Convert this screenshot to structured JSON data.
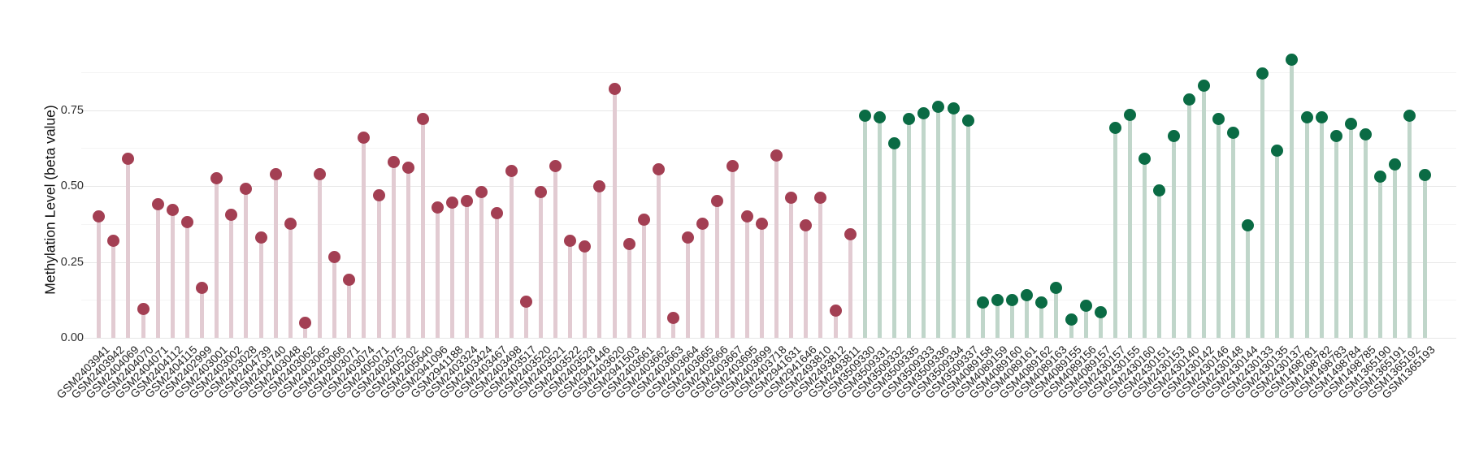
{
  "chart_data": {
    "type": "bar",
    "subtype": "lollipop",
    "title": "",
    "xlabel": "",
    "ylabel": "Methylation Level (beta value)",
    "ylim": [
      0,
      0.95
    ],
    "grid": true,
    "legend": false,
    "yticks": [
      0,
      0.25,
      0.5,
      0.75
    ],
    "ytick_labels": [
      "0.00",
      "0.25",
      "0.50",
      "0.75"
    ],
    "y_minor_gridlines": [
      0.125,
      0.375,
      0.625,
      0.875
    ],
    "groups": [
      {
        "name": "group-maroon",
        "from": 0,
        "to": 51,
        "stem_color": "#e2cbd2",
        "dot_color": "#a33f53"
      },
      {
        "name": "group-green",
        "from": 52,
        "to": 90,
        "stem_color": "#c0d6ca",
        "dot_color": "#0a6b44"
      }
    ],
    "categories": [
      "GSM2403941",
      "GSM2403942",
      "GSM2404069",
      "GSM2404070",
      "GSM2404071",
      "GSM2404112",
      "GSM2404115",
      "GSM2402999",
      "GSM2403001",
      "GSM2403002",
      "GSM2403028",
      "GSM2404739",
      "GSM2404740",
      "GSM2403048",
      "GSM2403062",
      "GSM2403065",
      "GSM2403066",
      "GSM2403071",
      "GSM2403074",
      "GSM2405071",
      "GSM2403075",
      "GSM2405202",
      "GSM2405640",
      "GSM2941096",
      "GSM2941188",
      "GSM2403324",
      "GSM2403424",
      "GSM2403467",
      "GSM2403498",
      "GSM2403517",
      "GSM2403520",
      "GSM2403521",
      "GSM2403522",
      "GSM2403528",
      "GSM2941446",
      "GSM2403620",
      "GSM2941503",
      "GSM2403661",
      "GSM2403662",
      "GSM2403663",
      "GSM2403664",
      "GSM2403665",
      "GSM2403666",
      "GSM2403667",
      "GSM2403695",
      "GSM2403699",
      "GSM2403718",
      "GSM2941631",
      "GSM2941646",
      "GSM2493810",
      "GSM2493812",
      "GSM2493811",
      "GSM3509330",
      "GSM3509331",
      "GSM3509332",
      "GSM3509335",
      "GSM3509333",
      "GSM3509336",
      "GSM3509334",
      "GSM3509337",
      "GSM4089158",
      "GSM4089159",
      "GSM4089160",
      "GSM4089161",
      "GSM4089162",
      "GSM4089163",
      "GSM4089155",
      "GSM4089156",
      "GSM4089157",
      "GSM2430157",
      "GSM2430155",
      "GSM2430160",
      "GSM2430151",
      "GSM2430153",
      "GSM2430140",
      "GSM2430142",
      "GSM2430146",
      "GSM2430148",
      "GSM2430144",
      "GSM2430133",
      "GSM2430135",
      "GSM2430137",
      "GSM1498781",
      "GSM1498782",
      "GSM1498783",
      "GSM1498784",
      "GSM1498785",
      "GSM1365190",
      "GSM1365191",
      "GSM1365192",
      "GSM1365193"
    ],
    "values": [
      0.4,
      0.32,
      0.59,
      0.095,
      0.44,
      0.42,
      0.38,
      0.165,
      0.525,
      0.405,
      0.49,
      0.33,
      0.54,
      0.375,
      0.05,
      0.54,
      0.265,
      0.19,
      0.66,
      0.47,
      0.58,
      0.56,
      0.72,
      0.43,
      0.445,
      0.45,
      0.48,
      0.41,
      0.55,
      0.12,
      0.48,
      0.565,
      0.32,
      0.3,
      0.5,
      0.82,
      0.31,
      0.39,
      0.555,
      0.065,
      0.33,
      0.375,
      0.45,
      0.565,
      0.4,
      0.375,
      0.6,
      0.46,
      0.37,
      0.46,
      0.09,
      0.34,
      0.73,
      0.725,
      0.64,
      0.72,
      0.74,
      0.76,
      0.755,
      0.715,
      0.115,
      0.125,
      0.125,
      0.14,
      0.115,
      0.165,
      0.06,
      0.105,
      0.085,
      0.69,
      0.735,
      0.59,
      0.485,
      0.665,
      0.785,
      0.83,
      0.72,
      0.675,
      0.37,
      0.87,
      0.615,
      0.915,
      0.725,
      0.725,
      0.665,
      0.705,
      0.67,
      0.53,
      0.57,
      0.73,
      0.535
    ]
  },
  "page": {
    "background": "#ffffff"
  }
}
